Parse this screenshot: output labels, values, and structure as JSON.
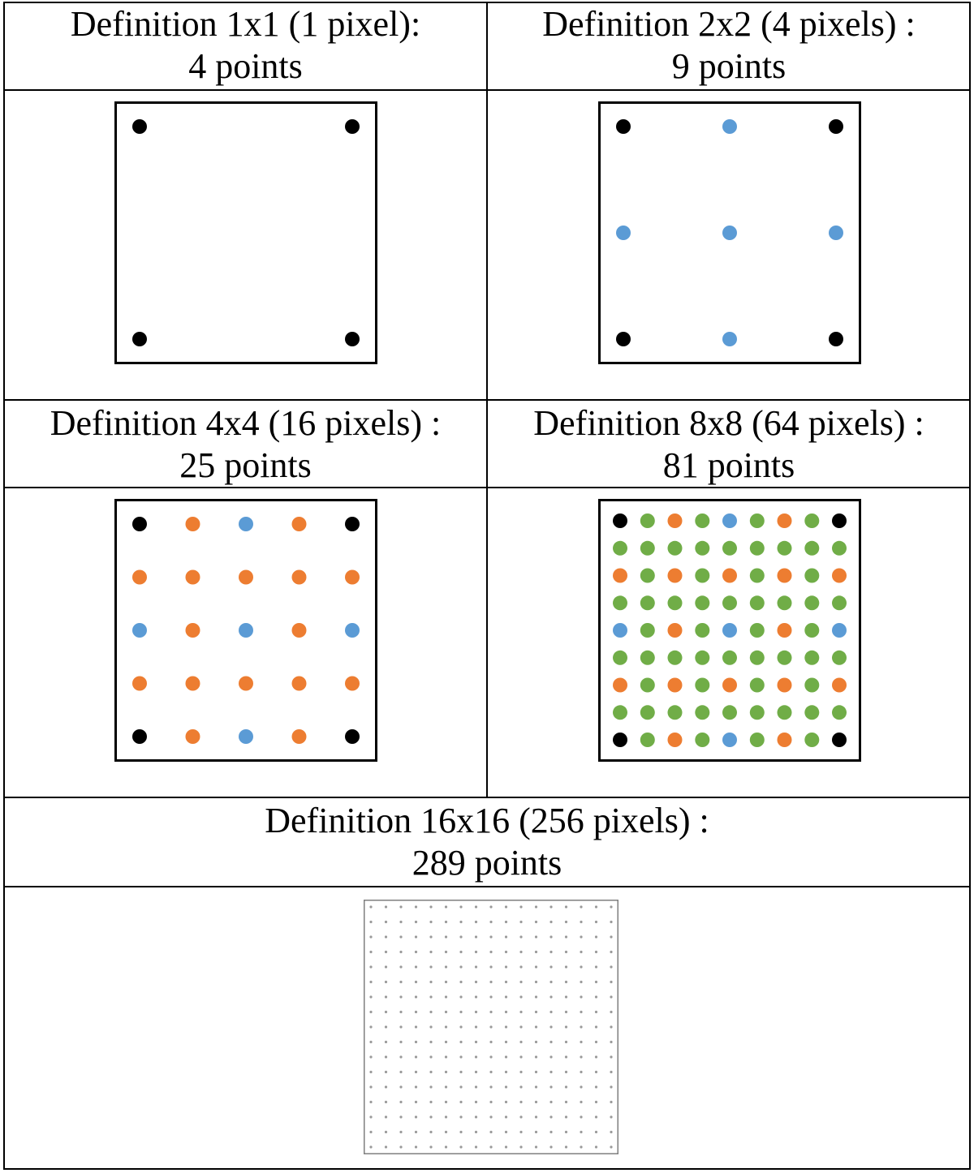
{
  "colors": {
    "black": "#000000",
    "blue": "#5b9bd5",
    "orange": "#ed7d31",
    "green": "#70ad47",
    "fine": "#9a9a9a"
  },
  "panels": [
    {
      "id": "def-1x1",
      "line1": "Definition 1x1 (1 pixel):",
      "line2": "4 points",
      "n": 1
    },
    {
      "id": "def-2x2",
      "line1": "Definition 2x2 (4 pixels) :",
      "line2": "9 points",
      "n": 2
    },
    {
      "id": "def-4x4",
      "line1": "Definition 4x4 (16 pixels) :",
      "line2": "25 points",
      "n": 4
    },
    {
      "id": "def-8x8",
      "line1": "Definition 8x8 (64 pixels) :",
      "line2": "81 points",
      "n": 8
    },
    {
      "id": "def-16x16",
      "line1": "Definition 16x16 (256 pixels) :",
      "line2": "289 points",
      "n": 16
    }
  ]
}
